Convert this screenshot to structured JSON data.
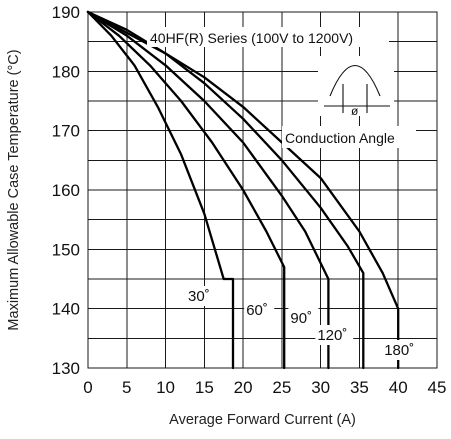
{
  "chart_data": {
    "type": "line",
    "title": "",
    "xlabel": "Average Forward Current (A)",
    "ylabel": "Maximum Allowable Case Temperature (°C)",
    "xlim": [
      0,
      45
    ],
    "ylim": [
      130,
      190
    ],
    "x_ticks": [
      "0",
      "5",
      "10",
      "15",
      "20",
      "25",
      "30",
      "35",
      "40",
      "45"
    ],
    "y_ticks": [
      "130",
      "140",
      "150",
      "160",
      "170",
      "180",
      "190"
    ],
    "grid": true,
    "annotation": "40HF(R) Series (100V to 1200V)",
    "inset": {
      "symbol": "ø",
      "caption": "Conduction Angle"
    },
    "series": [
      {
        "name": "30˚",
        "points": [
          [
            0,
            190
          ],
          [
            3,
            186
          ],
          [
            6,
            181
          ],
          [
            9,
            174
          ],
          [
            12,
            166
          ],
          [
            15,
            156
          ],
          [
            17.5,
            145
          ],
          [
            18.7,
            145
          ],
          [
            18.7,
            130
          ]
        ]
      },
      {
        "name": "60˚",
        "points": [
          [
            0,
            190
          ],
          [
            4,
            186
          ],
          [
            8,
            181
          ],
          [
            12,
            175
          ],
          [
            16,
            168
          ],
          [
            20,
            160
          ],
          [
            23,
            153
          ],
          [
            25.3,
            147
          ],
          [
            25.3,
            130
          ]
        ]
      },
      {
        "name": "90˚",
        "points": [
          [
            0,
            190
          ],
          [
            5,
            186
          ],
          [
            10,
            181
          ],
          [
            15,
            175
          ],
          [
            20,
            168
          ],
          [
            25,
            159
          ],
          [
            28,
            153
          ],
          [
            31,
            145
          ],
          [
            31,
            130
          ]
        ]
      },
      {
        "name": "120˚",
        "points": [
          [
            0,
            190
          ],
          [
            5,
            186.5
          ],
          [
            10,
            183
          ],
          [
            15,
            178
          ],
          [
            20,
            172
          ],
          [
            25,
            165
          ],
          [
            30,
            157
          ],
          [
            33.5,
            150.5
          ],
          [
            35.5,
            146
          ],
          [
            35.5,
            130
          ]
        ]
      },
      {
        "name": "180˚",
        "points": [
          [
            0,
            190
          ],
          [
            5,
            187
          ],
          [
            10,
            183
          ],
          [
            15,
            179
          ],
          [
            20,
            174
          ],
          [
            25,
            168
          ],
          [
            30,
            162
          ],
          [
            35,
            153
          ],
          [
            38,
            146
          ],
          [
            40,
            140
          ],
          [
            40,
            130
          ]
        ]
      }
    ]
  }
}
